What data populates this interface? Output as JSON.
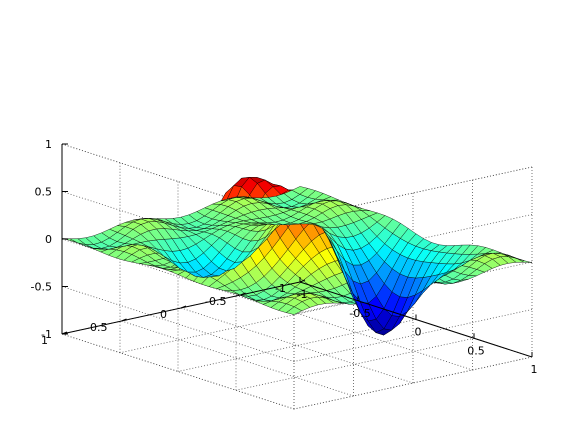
{
  "chart_data": {
    "type": "surface",
    "title": "",
    "xlabel": "",
    "ylabel": "",
    "zlabel": "",
    "x_range": [
      -1,
      1
    ],
    "y_range": [
      -1,
      1
    ],
    "z_range": [
      -1,
      1
    ],
    "x_ticks": [
      "-1",
      "-0.5",
      "0",
      "0.5",
      "1"
    ],
    "y_ticks": [
      "-1",
      "-0.5",
      "0",
      "0.5",
      "1"
    ],
    "z_ticks": [
      "-1",
      "-0.5",
      "0",
      "0.5",
      "1"
    ],
    "grid": true,
    "grid_style": "dotted",
    "colormap": "jet",
    "mesh_color": "#000000",
    "grid_resolution": 31,
    "features": [
      {
        "kind": "peak",
        "x": 0.0,
        "y": 0.45,
        "height": 0.93
      },
      {
        "kind": "trough",
        "x": -0.35,
        "y": 0.3,
        "height": -0.45
      },
      {
        "kind": "peak",
        "x": 0.3,
        "y": 0.15,
        "height": 0.6
      },
      {
        "kind": "peak",
        "x": -0.1,
        "y": -0.2,
        "height": 0.45
      },
      {
        "kind": "trough",
        "x": 0.15,
        "y": -0.55,
        "height": -1.0
      }
    ]
  }
}
